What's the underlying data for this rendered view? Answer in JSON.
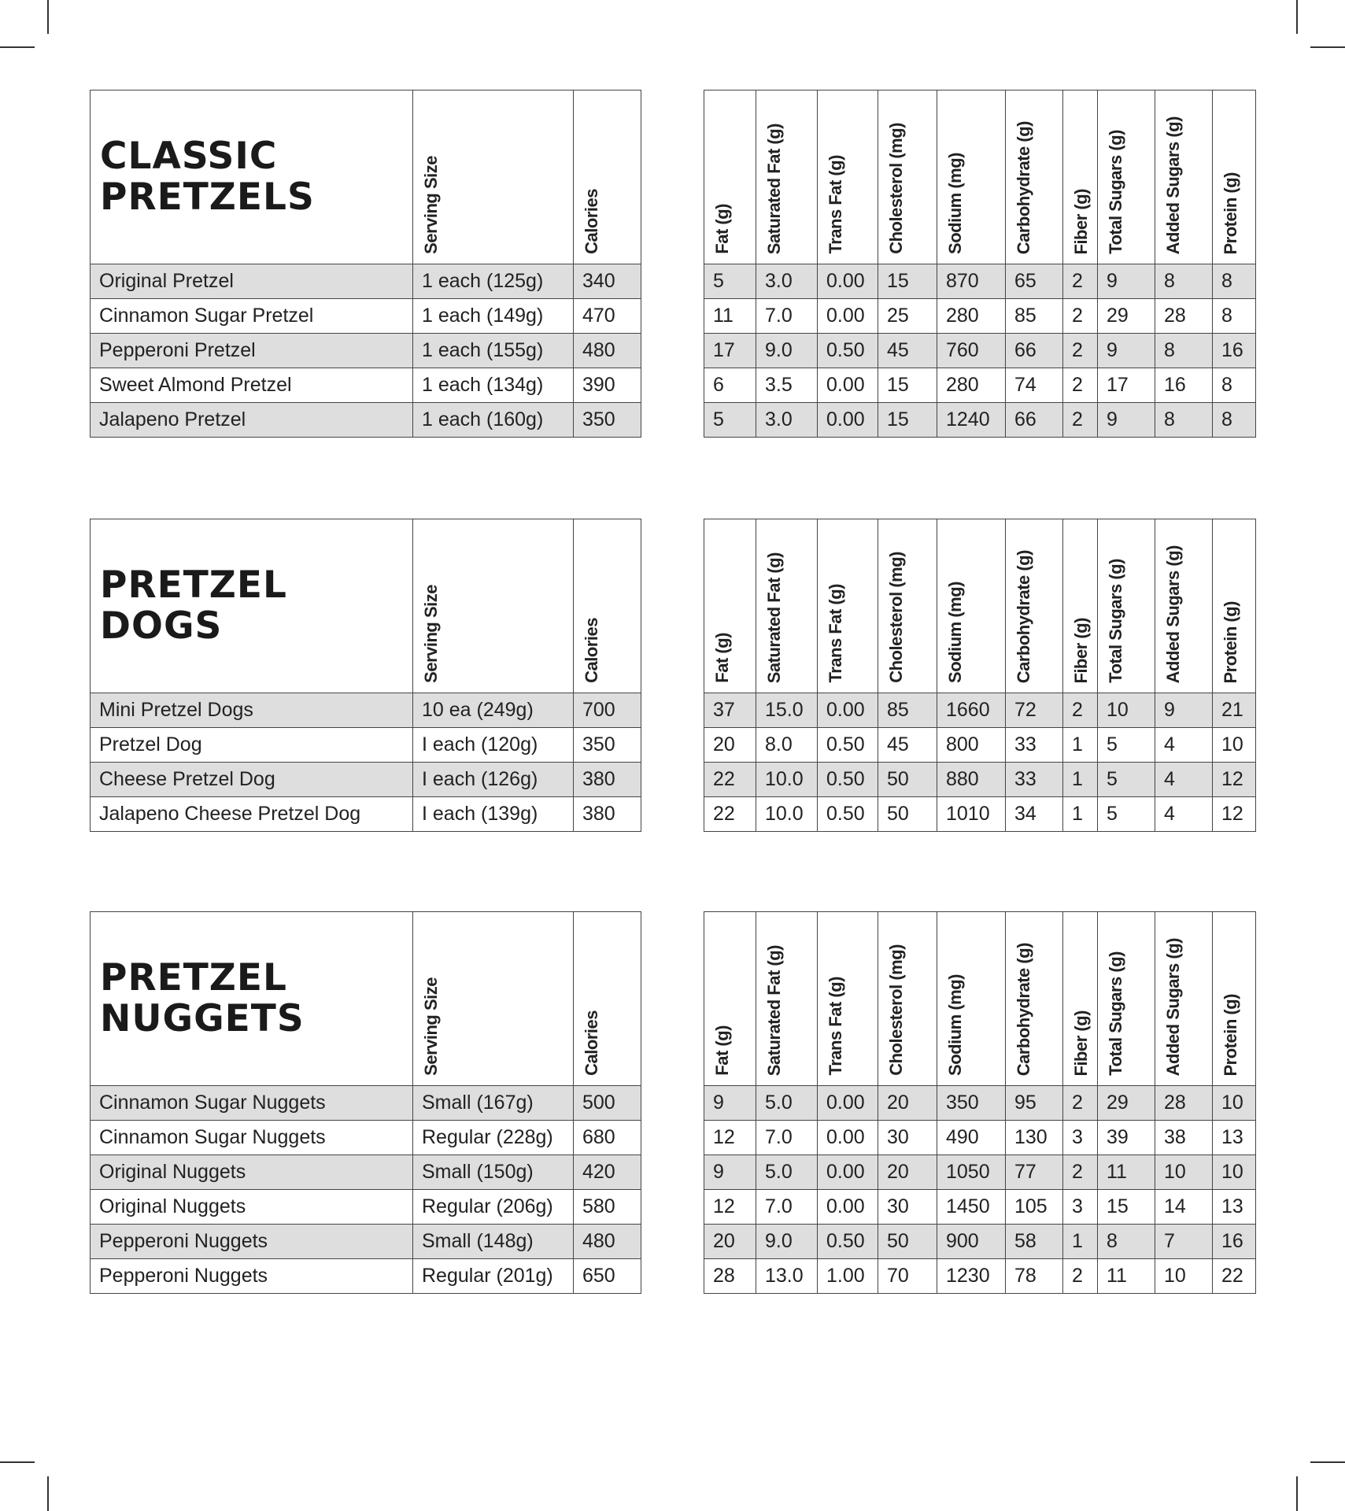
{
  "nutrient_headers": [
    "Fat (g)",
    "Saturated Fat (g)",
    "Trans Fat (g)",
    "Cholesterol (mg)",
    "Sodium (mg)",
    "Carbohydrate (g)",
    "Fiber (g)",
    "Total Sugars (g)",
    "Added Sugars (g)",
    "Protein (g)"
  ],
  "sections": [
    {
      "title": "CLASSIC\nPRETZELS",
      "serving_header": "Serving Size",
      "calories_header": "Calories",
      "rows": [
        {
          "item": "Original Pretzel",
          "serving": "1 each (125g)",
          "calories": "340",
          "n": [
            "5",
            "3.0",
            "0.00",
            "15",
            "870",
            "65",
            "2",
            "9",
            "8",
            "8"
          ]
        },
        {
          "item": "Cinnamon Sugar Pretzel",
          "serving": "1 each (149g)",
          "calories": "470",
          "n": [
            "11",
            "7.0",
            "0.00",
            "25",
            "280",
            "85",
            "2",
            "29",
            "28",
            "8"
          ]
        },
        {
          "item": "Pepperoni Pretzel",
          "serving": "1 each (155g)",
          "calories": "480",
          "n": [
            "17",
            "9.0",
            "0.50",
            "45",
            "760",
            "66",
            "2",
            "9",
            "8",
            "16"
          ]
        },
        {
          "item": "Sweet Almond Pretzel",
          "serving": "1 each (134g)",
          "calories": "390",
          "n": [
            "6",
            "3.5",
            "0.00",
            "15",
            "280",
            "74",
            "2",
            "17",
            "16",
            "8"
          ]
        },
        {
          "item": "Jalapeno Pretzel",
          "serving": "1 each (160g)",
          "calories": "350",
          "n": [
            "5",
            "3.0",
            "0.00",
            "15",
            "1240",
            "66",
            "2",
            "9",
            "8",
            "8"
          ]
        }
      ]
    },
    {
      "title": "PRETZEL\nDOGS",
      "serving_header": "Serving Size",
      "calories_header": "Calories",
      "rows": [
        {
          "item": "Mini Pretzel Dogs",
          "serving": "10 ea (249g)",
          "calories": "700",
          "n": [
            "37",
            "15.0",
            "0.00",
            "85",
            "1660",
            "72",
            "2",
            "10",
            "9",
            "21"
          ]
        },
        {
          "item": "Pretzel Dog",
          "serving": "I each (120g)",
          "calories": "350",
          "n": [
            "20",
            "8.0",
            "0.50",
            "45",
            "800",
            "33",
            "1",
            "5",
            "4",
            "10"
          ]
        },
        {
          "item": "Cheese Pretzel Dog",
          "serving": "I each (126g)",
          "calories": "380",
          "n": [
            "22",
            "10.0",
            "0.50",
            "50",
            "880",
            "33",
            "1",
            "5",
            "4",
            "12"
          ]
        },
        {
          "item": "Jalapeno Cheese Pretzel Dog",
          "serving": "I each (139g)",
          "calories": "380",
          "n": [
            "22",
            "10.0",
            "0.50",
            "50",
            "1010",
            "34",
            "1",
            "5",
            "4",
            "12"
          ]
        }
      ]
    },
    {
      "title": "PRETZEL\nNUGGETS",
      "serving_header": "Serving Size",
      "calories_header": "Calories",
      "rows": [
        {
          "item": "Cinnamon Sugar Nuggets",
          "serving": "Small (167g)",
          "calories": "500",
          "n": [
            "9",
            "5.0",
            "0.00",
            "20",
            "350",
            "95",
            "2",
            "29",
            "28",
            "10"
          ]
        },
        {
          "item": "Cinnamon Sugar Nuggets",
          "serving": "Regular (228g)",
          "calories": "680",
          "n": [
            "12",
            "7.0",
            "0.00",
            "30",
            "490",
            "130",
            "3",
            "39",
            "38",
            "13"
          ]
        },
        {
          "item": "Original Nuggets",
          "serving": "Small (150g)",
          "calories": "420",
          "n": [
            "9",
            "5.0",
            "0.00",
            "20",
            "1050",
            "77",
            "2",
            "11",
            "10",
            "10"
          ]
        },
        {
          "item": "Original Nuggets",
          "serving": "Regular (206g)",
          "calories": "580",
          "n": [
            "12",
            "7.0",
            "0.00",
            "30",
            "1450",
            "105",
            "3",
            "15",
            "14",
            "13"
          ]
        },
        {
          "item": "Pepperoni Nuggets",
          "serving": "Small (148g)",
          "calories": "480",
          "n": [
            "20",
            "9.0",
            "0.50",
            "50",
            "900",
            "58",
            "1",
            "8",
            "7",
            "16"
          ]
        },
        {
          "item": "Pepperoni Nuggets",
          "serving": "Regular (201g)",
          "calories": "650",
          "n": [
            "28",
            "13.0",
            "1.00",
            "70",
            "1230",
            "78",
            "2",
            "11",
            "10",
            "22"
          ]
        }
      ]
    }
  ]
}
